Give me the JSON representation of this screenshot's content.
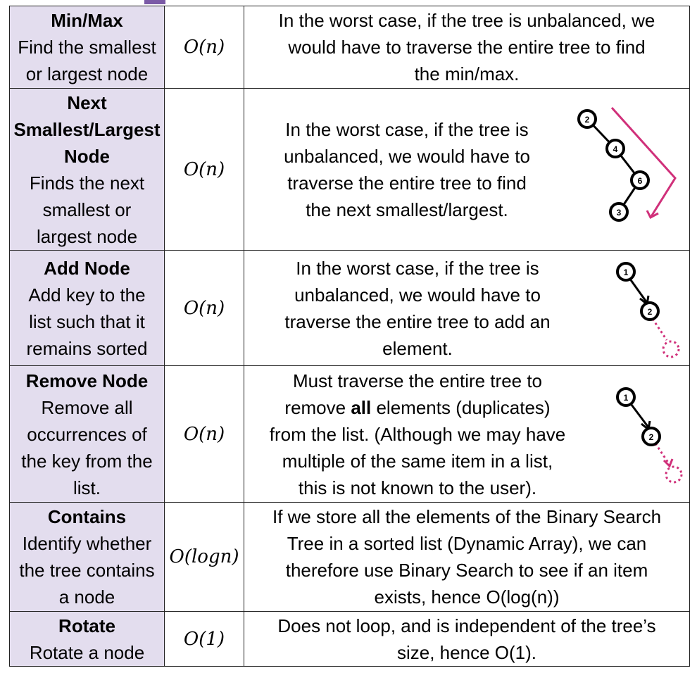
{
  "rows": [
    {
      "title": "Min/Max",
      "sub": [
        "Find the smallest",
        "or largest node"
      ],
      "complexity": "O(n)",
      "desc": [
        "In the worst case, if the tree is unbalanced, we",
        "would have to traverse the entire tree to find",
        "the min/max."
      ]
    },
    {
      "title_lines": [
        "Next",
        "Smallest/Largest",
        "Node"
      ],
      "sub": [
        "Finds the next",
        "smallest or",
        "largest node"
      ],
      "complexity": "O(n)",
      "desc": [
        "In the worst case, if the tree is",
        "unbalanced, we would have to",
        "traverse the entire tree to find",
        "the next smallest/largest."
      ],
      "diagram_nodes": [
        "2",
        "4",
        "6",
        "3"
      ]
    },
    {
      "title": "Add Node",
      "sub": [
        "Add key to the",
        "list such that it",
        "remains sorted"
      ],
      "complexity": "O(n)",
      "desc": [
        "In the worst case, if the tree is",
        "unbalanced, we would have to",
        "traverse the entire tree to add an",
        "element."
      ],
      "diagram_nodes": [
        "1",
        "2"
      ]
    },
    {
      "title": "Remove Node",
      "sub": [
        "Remove all",
        "occurrences of",
        "the key from the",
        "list."
      ],
      "complexity": "O(n)",
      "desc_l1": "Must traverse the entire tree to",
      "desc_l2_a": "remove ",
      "desc_l2_b": "all",
      "desc_l2_c": " elements (duplicates)",
      "desc_rest": [
        "from the list. (Although we may have",
        "multiple of the same item in a list,",
        "this is not known to the user)."
      ],
      "diagram_nodes": [
        "1",
        "2"
      ]
    },
    {
      "title": "Contains",
      "sub": [
        "Identify whether",
        "the tree contains",
        "a node"
      ],
      "complexity": "O(logn)",
      "desc": [
        "If we store all the elements of the Binary Search",
        "Tree in a sorted list (Dynamic Array), we can",
        "therefore use Binary Search to see if an item"
      ],
      "desc_last": "exists, hence O(log(n))"
    },
    {
      "title": "Rotate",
      "sub": [
        "Rotate a node"
      ],
      "complexity": "O(1)",
      "desc": [
        "Does not loop, and is independent of the tree’s",
        "size, hence O(1)."
      ]
    }
  ]
}
